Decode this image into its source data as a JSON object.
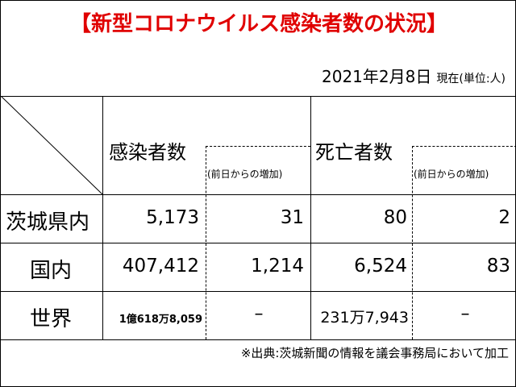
{
  "title": "【新型コロナウイルス感染者数の状況】",
  "date": "2021年2月8日",
  "unit_note": "現在(単位:人)",
  "headers": {
    "infected": "感染者数",
    "infected_change": "(前日からの増加)",
    "deaths": "死亡者数",
    "deaths_change": "(前日からの増加)"
  },
  "rows": [
    {
      "label": "茨城県内",
      "infected": "5,173",
      "infected_change": "31",
      "deaths": "80",
      "deaths_change": "2"
    },
    {
      "label": "国内",
      "infected": "407,412",
      "infected_change": "1,214",
      "deaths": "6,524",
      "deaths_change": "83"
    },
    {
      "label": "世界",
      "infected": "1億618万8,059",
      "infected_change": "–",
      "deaths": "231万7,943",
      "deaths_change": "–"
    }
  ],
  "footer": "※出典:茨城新聞の情報を議会事務局において加工",
  "colors": {
    "title": "#e00000",
    "text": "#000000",
    "background": "#ffffff"
  }
}
